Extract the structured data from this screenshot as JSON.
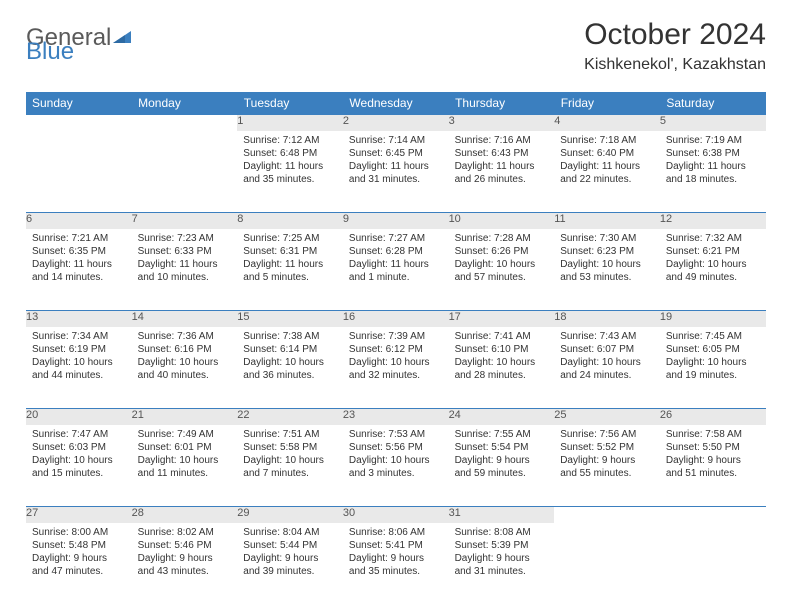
{
  "logo": {
    "text1": "General",
    "text2": "Blue"
  },
  "title": "October 2024",
  "location": "Kishkenekol', Kazakhstan",
  "colors": {
    "header_bg": "#3b7fbf",
    "header_text": "#ffffff",
    "daynum_bg": "#e9e9e9",
    "border": "#3b7fbf",
    "text": "#333333",
    "logo_gray": "#5a5a5a",
    "logo_blue": "#3b7fbf",
    "page_bg": "#ffffff"
  },
  "typography": {
    "title_fontsize": 30,
    "location_fontsize": 16,
    "dayheader_fontsize": 12,
    "daynum_fontsize": 11,
    "cell_fontsize": 10
  },
  "dayHeaders": [
    "Sunday",
    "Monday",
    "Tuesday",
    "Wednesday",
    "Thursday",
    "Friday",
    "Saturday"
  ],
  "weeks": [
    [
      null,
      null,
      {
        "n": "1",
        "sunrise": "7:12 AM",
        "sunset": "6:48 PM",
        "daylight": "11 hours and 35 minutes."
      },
      {
        "n": "2",
        "sunrise": "7:14 AM",
        "sunset": "6:45 PM",
        "daylight": "11 hours and 31 minutes."
      },
      {
        "n": "3",
        "sunrise": "7:16 AM",
        "sunset": "6:43 PM",
        "daylight": "11 hours and 26 minutes."
      },
      {
        "n": "4",
        "sunrise": "7:18 AM",
        "sunset": "6:40 PM",
        "daylight": "11 hours and 22 minutes."
      },
      {
        "n": "5",
        "sunrise": "7:19 AM",
        "sunset": "6:38 PM",
        "daylight": "11 hours and 18 minutes."
      }
    ],
    [
      {
        "n": "6",
        "sunrise": "7:21 AM",
        "sunset": "6:35 PM",
        "daylight": "11 hours and 14 minutes."
      },
      {
        "n": "7",
        "sunrise": "7:23 AM",
        "sunset": "6:33 PM",
        "daylight": "11 hours and 10 minutes."
      },
      {
        "n": "8",
        "sunrise": "7:25 AM",
        "sunset": "6:31 PM",
        "daylight": "11 hours and 5 minutes."
      },
      {
        "n": "9",
        "sunrise": "7:27 AM",
        "sunset": "6:28 PM",
        "daylight": "11 hours and 1 minute."
      },
      {
        "n": "10",
        "sunrise": "7:28 AM",
        "sunset": "6:26 PM",
        "daylight": "10 hours and 57 minutes."
      },
      {
        "n": "11",
        "sunrise": "7:30 AM",
        "sunset": "6:23 PM",
        "daylight": "10 hours and 53 minutes."
      },
      {
        "n": "12",
        "sunrise": "7:32 AM",
        "sunset": "6:21 PM",
        "daylight": "10 hours and 49 minutes."
      }
    ],
    [
      {
        "n": "13",
        "sunrise": "7:34 AM",
        "sunset": "6:19 PM",
        "daylight": "10 hours and 44 minutes."
      },
      {
        "n": "14",
        "sunrise": "7:36 AM",
        "sunset": "6:16 PM",
        "daylight": "10 hours and 40 minutes."
      },
      {
        "n": "15",
        "sunrise": "7:38 AM",
        "sunset": "6:14 PM",
        "daylight": "10 hours and 36 minutes."
      },
      {
        "n": "16",
        "sunrise": "7:39 AM",
        "sunset": "6:12 PM",
        "daylight": "10 hours and 32 minutes."
      },
      {
        "n": "17",
        "sunrise": "7:41 AM",
        "sunset": "6:10 PM",
        "daylight": "10 hours and 28 minutes."
      },
      {
        "n": "18",
        "sunrise": "7:43 AM",
        "sunset": "6:07 PM",
        "daylight": "10 hours and 24 minutes."
      },
      {
        "n": "19",
        "sunrise": "7:45 AM",
        "sunset": "6:05 PM",
        "daylight": "10 hours and 19 minutes."
      }
    ],
    [
      {
        "n": "20",
        "sunrise": "7:47 AM",
        "sunset": "6:03 PM",
        "daylight": "10 hours and 15 minutes."
      },
      {
        "n": "21",
        "sunrise": "7:49 AM",
        "sunset": "6:01 PM",
        "daylight": "10 hours and 11 minutes."
      },
      {
        "n": "22",
        "sunrise": "7:51 AM",
        "sunset": "5:58 PM",
        "daylight": "10 hours and 7 minutes."
      },
      {
        "n": "23",
        "sunrise": "7:53 AM",
        "sunset": "5:56 PM",
        "daylight": "10 hours and 3 minutes."
      },
      {
        "n": "24",
        "sunrise": "7:55 AM",
        "sunset": "5:54 PM",
        "daylight": "9 hours and 59 minutes."
      },
      {
        "n": "25",
        "sunrise": "7:56 AM",
        "sunset": "5:52 PM",
        "daylight": "9 hours and 55 minutes."
      },
      {
        "n": "26",
        "sunrise": "7:58 AM",
        "sunset": "5:50 PM",
        "daylight": "9 hours and 51 minutes."
      }
    ],
    [
      {
        "n": "27",
        "sunrise": "8:00 AM",
        "sunset": "5:48 PM",
        "daylight": "9 hours and 47 minutes."
      },
      {
        "n": "28",
        "sunrise": "8:02 AM",
        "sunset": "5:46 PM",
        "daylight": "9 hours and 43 minutes."
      },
      {
        "n": "29",
        "sunrise": "8:04 AM",
        "sunset": "5:44 PM",
        "daylight": "9 hours and 39 minutes."
      },
      {
        "n": "30",
        "sunrise": "8:06 AM",
        "sunset": "5:41 PM",
        "daylight": "9 hours and 35 minutes."
      },
      {
        "n": "31",
        "sunrise": "8:08 AM",
        "sunset": "5:39 PM",
        "daylight": "9 hours and 31 minutes."
      },
      null,
      null
    ]
  ],
  "labels": {
    "sunrise": "Sunrise: ",
    "sunset": "Sunset: ",
    "daylight": "Daylight: "
  }
}
